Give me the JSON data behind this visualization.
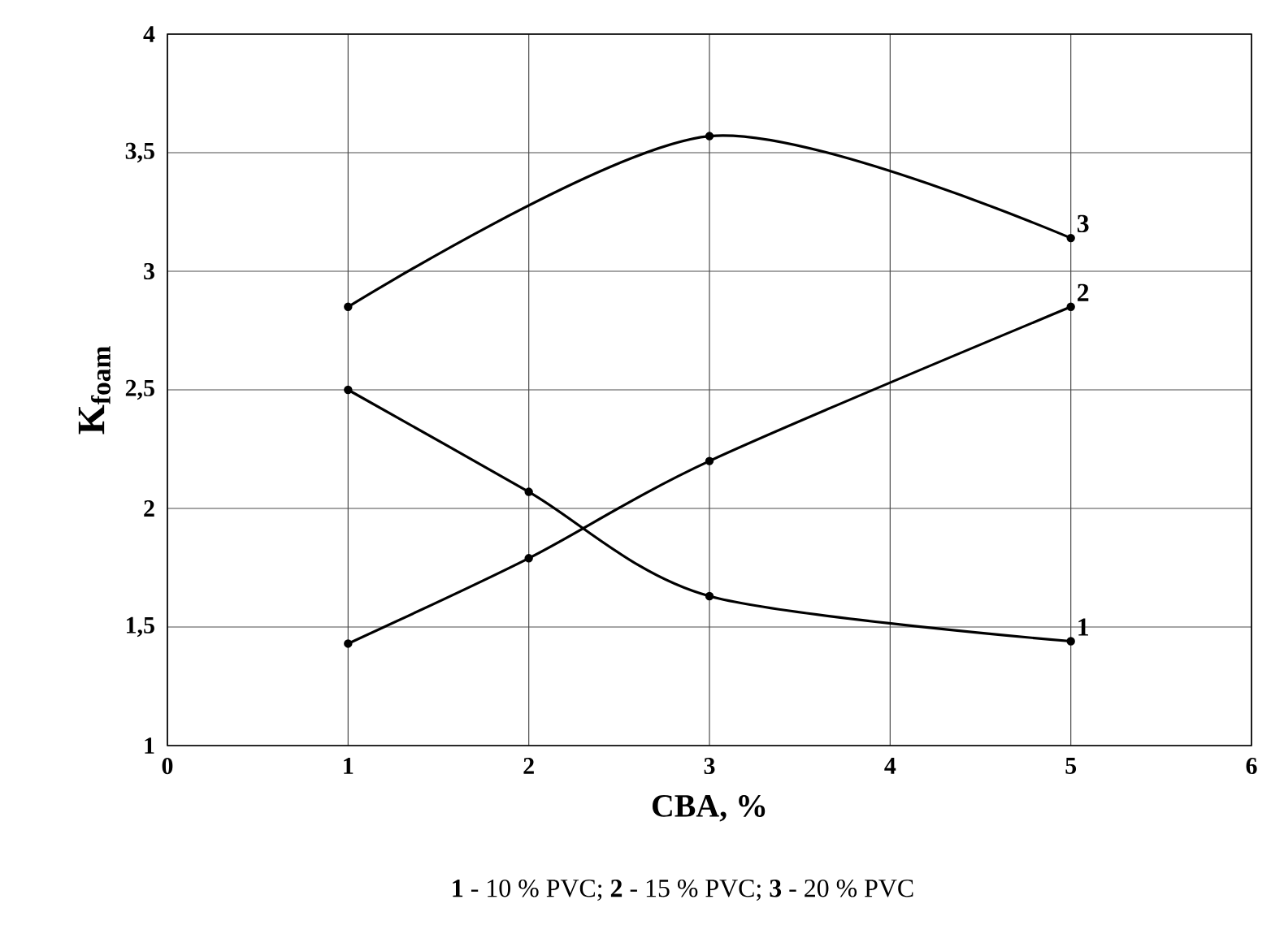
{
  "chart_data": {
    "type": "line",
    "xlabel": "CBA, %",
    "ylabel": "K$_{foam}$",
    "series": [
      {
        "name": "1",
        "color": "#000000",
        "x": [
          1,
          2,
          3,
          5
        ],
        "values": [
          2.5,
          2.07,
          1.63,
          1.44
        ]
      },
      {
        "name": "2",
        "color": "#000000",
        "x": [
          1,
          2,
          3,
          5
        ],
        "values": [
          1.43,
          1.79,
          2.2,
          2.85
        ]
      },
      {
        "name": "3",
        "color": "#000000",
        "x": [
          1,
          3,
          5
        ],
        "values": [
          2.85,
          3.57,
          3.14
        ]
      }
    ],
    "xlim": [
      0,
      6
    ],
    "xticks": [
      0,
      1,
      2,
      3,
      4,
      5,
      6
    ],
    "ylim": [
      1,
      4
    ],
    "yticks": [
      1,
      {
        "value": 1.5,
        "label": "1,5"
      },
      2,
      {
        "value": 2.5,
        "label": "2,5"
      },
      3,
      {
        "value": 3.5,
        "label": "3,5"
      },
      4
    ],
    "grid": true,
    "marker": "circle",
    "line_style": "solid",
    "annotations": [
      "**1** - 10 % PVC;  **2** - 15 % PVC;  **3** - 20 % PVC"
    ]
  }
}
